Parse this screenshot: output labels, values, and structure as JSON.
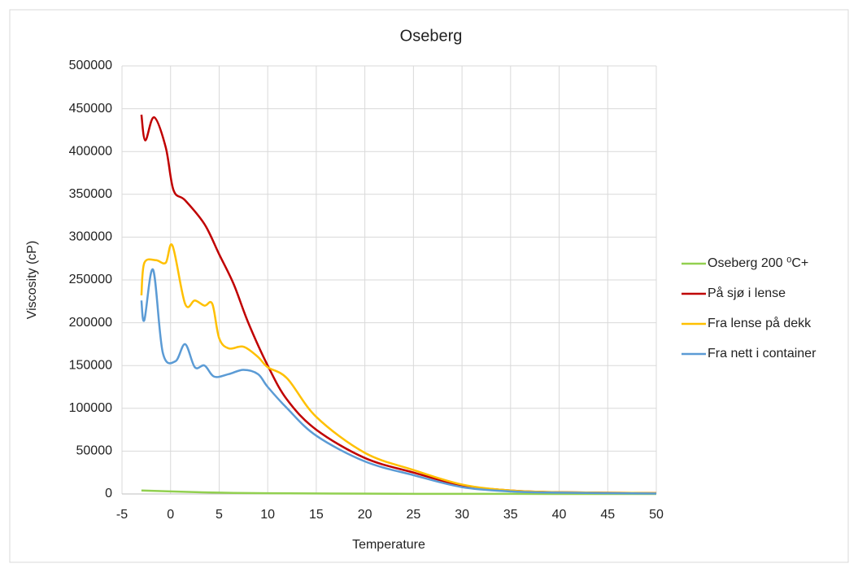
{
  "chart_data": {
    "type": "line",
    "title": "Oseberg",
    "x_label": "Temperature",
    "y_label": "Viscosity (cP)",
    "xlim": [
      -5,
      50
    ],
    "xticks": [
      -5,
      0,
      5,
      10,
      15,
      20,
      25,
      30,
      35,
      40,
      45,
      50
    ],
    "ylim": [
      0,
      500000
    ],
    "yticks": [
      0,
      50000,
      100000,
      150000,
      200000,
      250000,
      300000,
      350000,
      400000,
      450000,
      500000
    ],
    "grid": true,
    "legend": "right",
    "series": [
      {
        "name": "Oseberg 200 ⁰C+",
        "color": "#92d050",
        "x": [
          -3,
          0,
          5,
          10,
          20,
          30,
          50
        ],
        "values": [
          4000,
          3000,
          1500,
          800,
          300,
          100,
          0
        ]
      },
      {
        "name": "På sjø i lense",
        "color": "#c00000",
        "x": [
          -3,
          -2.6,
          -1.7,
          -0.5,
          0.3,
          1.5,
          3.5,
          5,
          6.5,
          8,
          10,
          12,
          15,
          20,
          25,
          30,
          35,
          40,
          50
        ],
        "values": [
          443000,
          413000,
          440000,
          405000,
          355000,
          343000,
          315000,
          280000,
          245000,
          200000,
          150000,
          110000,
          75000,
          42000,
          25000,
          10000,
          4000,
          2000,
          1000
        ]
      },
      {
        "name": "Fra lense på dekk",
        "color": "#ffc000",
        "x": [
          -3,
          -2.7,
          -1.5,
          -0.5,
          0.2,
          1.5,
          2.5,
          3.5,
          4.3,
          5,
          6,
          7.5,
          9,
          10,
          12,
          15,
          20,
          25,
          30,
          35,
          40,
          50
        ],
        "values": [
          232000,
          270000,
          273000,
          270000,
          290000,
          222000,
          226000,
          220000,
          222000,
          182000,
          170000,
          172000,
          160000,
          148000,
          135000,
          90000,
          48000,
          28000,
          11000,
          4000,
          2000,
          1000
        ]
      },
      {
        "name": "Fra nett i container",
        "color": "#5b9bd5",
        "x": [
          -3,
          -2.7,
          -1.8,
          -0.8,
          0.5,
          1.5,
          2.5,
          3.5,
          4.5,
          6,
          7.5,
          9,
          10,
          12,
          15,
          20,
          25,
          30,
          35,
          40,
          50
        ],
        "values": [
          226000,
          203000,
          262000,
          165000,
          155000,
          175000,
          148000,
          150000,
          137000,
          140000,
          145000,
          140000,
          125000,
          100000,
          68000,
          38000,
          22000,
          8000,
          3000,
          1500,
          500
        ]
      }
    ]
  }
}
